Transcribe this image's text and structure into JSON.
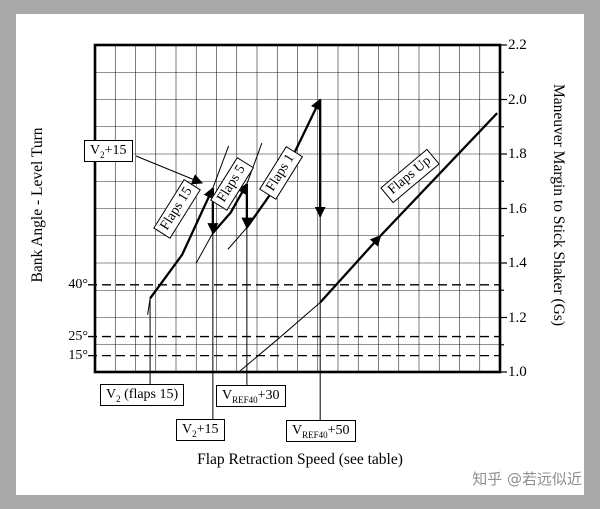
{
  "page": {
    "watermark": "知乎 @若远似近"
  },
  "chart_data": {
    "type": "line",
    "title": "",
    "xlabel": "Flap Retraction Speed (see table)",
    "ylabel_left": "Bank Angle - Level Turn",
    "ylabel_right": "Maneuver Margin to Stick Shaker (Gs)",
    "x_range": [
      0,
      10
    ],
    "y_range": [
      1.0,
      2.2
    ],
    "y_ticks": [
      "1.0",
      "1.2",
      "1.4",
      "1.6",
      "1.8",
      "2.0",
      "2.2"
    ],
    "grid": {
      "on": true,
      "x_divisions": 20,
      "y_divisions": 12
    },
    "bank_angle_lines": [
      {
        "label": "40°",
        "y": 1.32
      },
      {
        "label": "25°",
        "y": 1.13
      },
      {
        "label": "15°",
        "y": 1.06
      }
    ],
    "series": [
      {
        "name": "flaps-15-bold",
        "style": "bold",
        "arrow_end": true,
        "points": [
          [
            1.36,
            1.27
          ],
          [
            2.15,
            1.43
          ],
          [
            2.91,
            1.675
          ]
        ]
      },
      {
        "name": "retract-drop-at-v2plus15",
        "style": "bold",
        "arrow_end": true,
        "points": [
          [
            2.91,
            1.675
          ],
          [
            2.91,
            1.51
          ]
        ]
      },
      {
        "name": "flaps-5-bold",
        "style": "bold",
        "arrow_end": true,
        "points": [
          [
            2.91,
            1.51
          ],
          [
            3.35,
            1.585
          ],
          [
            3.75,
            1.69
          ]
        ]
      },
      {
        "name": "retract-drop-at-vref40plus30",
        "style": "bold",
        "arrow_end": true,
        "points": [
          [
            3.75,
            1.69
          ],
          [
            3.75,
            1.53
          ]
        ]
      },
      {
        "name": "flaps-1-bold",
        "style": "bold",
        "arrow_end": true,
        "points": [
          [
            3.75,
            1.53
          ],
          [
            4.65,
            1.72
          ],
          [
            5.56,
            2.0
          ]
        ]
      },
      {
        "name": "retract-drop-at-vref40plus50",
        "style": "bold",
        "arrow_end": true,
        "points": [
          [
            5.56,
            2.0
          ],
          [
            5.56,
            1.57
          ]
        ]
      },
      {
        "name": "flaps-up-bold-a",
        "style": "bold",
        "arrow_end": true,
        "points": [
          [
            5.56,
            1.255
          ],
          [
            7.05,
            1.5
          ]
        ]
      },
      {
        "name": "flaps-up-bold-b",
        "style": "bold",
        "arrow_end": false,
        "points": [
          [
            7.05,
            1.5
          ],
          [
            9.93,
            1.95
          ]
        ]
      },
      {
        "name": "flaps-15-thin-pre",
        "style": "thin",
        "arrow_end": false,
        "points": [
          [
            1.3,
            1.21
          ],
          [
            1.36,
            1.27
          ]
        ]
      },
      {
        "name": "flaps-15-thin-ext",
        "style": "thin",
        "arrow_end": false,
        "points": [
          [
            2.91,
            1.675
          ],
          [
            3.3,
            1.83
          ]
        ]
      },
      {
        "name": "flaps-5-thin-pre",
        "style": "thin",
        "arrow_end": false,
        "points": [
          [
            2.5,
            1.4
          ],
          [
            2.91,
            1.51
          ]
        ]
      },
      {
        "name": "flaps-5-thin-ext",
        "style": "thin",
        "arrow_end": false,
        "points": [
          [
            3.75,
            1.69
          ],
          [
            4.12,
            1.84
          ]
        ]
      },
      {
        "name": "flaps-1-thin-pre",
        "style": "thin",
        "arrow_end": false,
        "points": [
          [
            3.28,
            1.45
          ],
          [
            3.75,
            1.53
          ]
        ]
      },
      {
        "name": "flaps-up-thin-pre",
        "style": "thin",
        "arrow_end": false,
        "points": [
          [
            3.55,
            1.0
          ],
          [
            4.55,
            1.125
          ],
          [
            5.56,
            1.255
          ]
        ]
      }
    ],
    "reference_lines": [
      {
        "name": "v2-flaps15-line",
        "x": 1.36,
        "y_top": 1.27
      },
      {
        "name": "v2plus15-line",
        "x": 2.91,
        "y_top": 1.51
      },
      {
        "name": "vref40plus30-line",
        "x": 3.75,
        "y_top": 1.53
      },
      {
        "name": "vref40plus50-line",
        "x": 5.56,
        "y_top": 2.0
      }
    ],
    "flap_labels": [
      {
        "text": "Flaps 15",
        "x": 2.02,
        "y": 1.6,
        "angle": -58
      },
      {
        "text": "Flaps 5",
        "x": 3.38,
        "y": 1.69,
        "angle": -58
      },
      {
        "text": "Flaps 1",
        "x": 4.59,
        "y": 1.73,
        "angle": -58
      },
      {
        "text": "Flaps Up",
        "x": 7.78,
        "y": 1.72,
        "angle": -40
      }
    ],
    "callouts": {
      "v2plus15_top": {
        "base": "V",
        "sub": "2",
        "rest": "+15"
      },
      "v2_flaps15": {
        "base": "V",
        "sub": "2",
        "rest": " (flaps 15)"
      },
      "vref40plus30": {
        "base": "V",
        "sub": "REF40",
        "rest": "+30"
      },
      "v2plus15_bottom": {
        "base": "V",
        "sub": "2",
        "rest": "+15"
      },
      "vref40plus50": {
        "base": "V",
        "sub": "REF40",
        "rest": "+50"
      }
    }
  }
}
